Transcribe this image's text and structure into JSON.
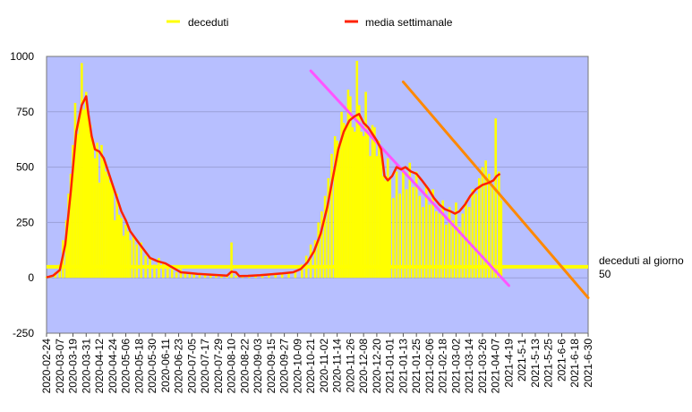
{
  "chart_data": {
    "type": "line",
    "title": "",
    "xlabel": "",
    "ylabel": "",
    "ylim": [
      -250,
      1000
    ],
    "yticks": [
      -250,
      0,
      250,
      500,
      750,
      1000
    ],
    "x_start": "2020-02-24",
    "x_end": "2021-06-30",
    "xtick_labels": [
      "2020-02-24",
      "2020-03-07",
      "2020-03-19",
      "2020-03-31",
      "2020-04-12",
      "2020-04-24",
      "2020-05-06",
      "2020-05-18",
      "2020-05-30",
      "2020-06-11",
      "2020-06-23",
      "2020-07-05",
      "2020-07-17",
      "2020-07-29",
      "2020-08-10",
      "2020-08-22",
      "2020-09-03",
      "2020-09-15",
      "2020-09-27",
      "2020-10-09",
      "2020-10-21",
      "2020-11-02",
      "2020-11-14",
      "2020-11-26",
      "2020-12-08",
      "2020-12-20",
      "2021-01-01",
      "2021-01-13",
      "2021-01-25",
      "2021-02-06",
      "2021-02-18",
      "2021-03-02",
      "2021-03-14",
      "2021-03-26",
      "2021-04-07",
      "2021-4-19",
      "2021-5-1",
      "2021-5-13",
      "2021-5-25",
      "2021-6-6",
      "2021-6-18",
      "2021-6-30"
    ],
    "grid": "horizontal",
    "legend_position": "top",
    "plot_background": "#b7bfff",
    "series": [
      {
        "name": "deceduti",
        "color": "#ffff00",
        "style": "bar",
        "points": [
          [
            "2020-02-24",
            5
          ],
          [
            "2020-02-28",
            8
          ],
          [
            "2020-03-03",
            25
          ],
          [
            "2020-03-07",
            60
          ],
          [
            "2020-03-10",
            170
          ],
          [
            "2020-03-13",
            260
          ],
          [
            "2020-03-15",
            380
          ],
          [
            "2020-03-17",
            470
          ],
          [
            "2020-03-19",
            600
          ],
          [
            "2020-03-21",
            790
          ],
          [
            "2020-03-23",
            650
          ],
          [
            "2020-03-25",
            740
          ],
          [
            "2020-03-27",
            970
          ],
          [
            "2020-03-29",
            760
          ],
          [
            "2020-03-31",
            840
          ],
          [
            "2020-04-02",
            740
          ],
          [
            "2020-04-04",
            690
          ],
          [
            "2020-04-06",
            630
          ],
          [
            "2020-04-08",
            540
          ],
          [
            "2020-04-10",
            610
          ],
          [
            "2020-04-12",
            430
          ],
          [
            "2020-04-14",
            600
          ],
          [
            "2020-04-16",
            530
          ],
          [
            "2020-04-18",
            480
          ],
          [
            "2020-04-20",
            460
          ],
          [
            "2020-04-22",
            430
          ],
          [
            "2020-04-24",
            420
          ],
          [
            "2020-04-26",
            260
          ],
          [
            "2020-04-28",
            380
          ],
          [
            "2020-04-30",
            285
          ],
          [
            "2020-05-02",
            270
          ],
          [
            "2020-05-04",
            190
          ],
          [
            "2020-05-06",
            240
          ],
          [
            "2020-05-08",
            210
          ],
          [
            "2020-05-10",
            170
          ],
          [
            "2020-05-13",
            190
          ],
          [
            "2020-05-16",
            150
          ],
          [
            "2020-05-20",
            160
          ],
          [
            "2020-05-24",
            100
          ],
          [
            "2020-05-28",
            90
          ],
          [
            "2020-06-01",
            60
          ],
          [
            "2020-06-05",
            90
          ],
          [
            "2020-06-09",
            70
          ],
          [
            "2020-06-13",
            60
          ],
          [
            "2020-06-17",
            40
          ],
          [
            "2020-06-21",
            25
          ],
          [
            "2020-06-25",
            40
          ],
          [
            "2020-06-29",
            20
          ],
          [
            "2020-07-03",
            25
          ],
          [
            "2020-07-07",
            20
          ],
          [
            "2020-07-12",
            15
          ],
          [
            "2020-07-17",
            15
          ],
          [
            "2020-07-22",
            15
          ],
          [
            "2020-07-27",
            10
          ],
          [
            "2020-08-01",
            10
          ],
          [
            "2020-08-06",
            8
          ],
          [
            "2020-08-10",
            160
          ],
          [
            "2020-08-14",
            10
          ],
          [
            "2020-08-20",
            8
          ],
          [
            "2020-08-26",
            10
          ],
          [
            "2020-09-01",
            10
          ],
          [
            "2020-09-07",
            12
          ],
          [
            "2020-09-13",
            15
          ],
          [
            "2020-09-19",
            20
          ],
          [
            "2020-09-25",
            20
          ],
          [
            "2020-10-01",
            25
          ],
          [
            "2020-10-07",
            30
          ],
          [
            "2020-10-13",
            60
          ],
          [
            "2020-10-17",
            100
          ],
          [
            "2020-10-21",
            150
          ],
          [
            "2020-10-25",
            170
          ],
          [
            "2020-10-28",
            250
          ],
          [
            "2020-10-31",
            300
          ],
          [
            "2020-11-03",
            370
          ],
          [
            "2020-11-06",
            450
          ],
          [
            "2020-11-09",
            560
          ],
          [
            "2020-11-12",
            640
          ],
          [
            "2020-11-14",
            620
          ],
          [
            "2020-11-16",
            580
          ],
          [
            "2020-11-18",
            750
          ],
          [
            "2020-11-20",
            700
          ],
          [
            "2020-11-22",
            690
          ],
          [
            "2020-11-24",
            850
          ],
          [
            "2020-11-26",
            820
          ],
          [
            "2020-11-28",
            680
          ],
          [
            "2020-11-30",
            660
          ],
          [
            "2020-12-02",
            980
          ],
          [
            "2020-12-04",
            780
          ],
          [
            "2020-12-06",
            660
          ],
          [
            "2020-12-08",
            640
          ],
          [
            "2020-12-10",
            840
          ],
          [
            "2020-12-12",
            650
          ],
          [
            "2020-12-14",
            550
          ],
          [
            "2020-12-16",
            690
          ],
          [
            "2020-12-18",
            680
          ],
          [
            "2020-12-20",
            550
          ],
          [
            "2020-12-22",
            620
          ],
          [
            "2020-12-24",
            550
          ],
          [
            "2020-12-26",
            460
          ],
          [
            "2020-12-28",
            440
          ],
          [
            "2020-12-30",
            540
          ],
          [
            "2021-01-01",
            450
          ],
          [
            "2021-01-04",
            360
          ],
          [
            "2021-01-07",
            480
          ],
          [
            "2021-01-10",
            380
          ],
          [
            "2021-01-13",
            500
          ],
          [
            "2021-01-16",
            400
          ],
          [
            "2021-01-19",
            520
          ],
          [
            "2021-01-22",
            410
          ],
          [
            "2021-01-25",
            480
          ],
          [
            "2021-01-28",
            370
          ],
          [
            "2021-01-31",
            320
          ],
          [
            "2021-02-03",
            420
          ],
          [
            "2021-02-06",
            330
          ],
          [
            "2021-02-09",
            400
          ],
          [
            "2021-02-12",
            300
          ],
          [
            "2021-02-15",
            290
          ],
          [
            "2021-02-18",
            350
          ],
          [
            "2021-02-21",
            240
          ],
          [
            "2021-02-24",
            320
          ],
          [
            "2021-02-27",
            260
          ],
          [
            "2021-03-02",
            340
          ],
          [
            "2021-03-05",
            230
          ],
          [
            "2021-03-08",
            290
          ],
          [
            "2021-03-11",
            350
          ],
          [
            "2021-03-14",
            320
          ],
          [
            "2021-03-17",
            400
          ],
          [
            "2021-03-20",
            380
          ],
          [
            "2021-03-23",
            450
          ],
          [
            "2021-03-26",
            500
          ],
          [
            "2021-03-29",
            530
          ],
          [
            "2021-04-01",
            470
          ],
          [
            "2021-04-04",
            410
          ],
          [
            "2021-04-07",
            720
          ],
          [
            "2021-04-10",
            480
          ],
          [
            "2021-04-12",
            350
          ]
        ]
      },
      {
        "name": "media settimanale",
        "color": "#ff2200",
        "style": "line",
        "points": [
          [
            "2020-02-24",
            2
          ],
          [
            "2020-03-01",
            10
          ],
          [
            "2020-03-07",
            35
          ],
          [
            "2020-03-12",
            150
          ],
          [
            "2020-03-17",
            390
          ],
          [
            "2020-03-22",
            660
          ],
          [
            "2020-03-27",
            780
          ],
          [
            "2020-03-31",
            820
          ],
          [
            "2020-04-02",
            740
          ],
          [
            "2020-04-05",
            640
          ],
          [
            "2020-04-08",
            580
          ],
          [
            "2020-04-12",
            570
          ],
          [
            "2020-04-16",
            540
          ],
          [
            "2020-04-20",
            480
          ],
          [
            "2020-04-24",
            420
          ],
          [
            "2020-04-28",
            360
          ],
          [
            "2020-05-02",
            300
          ],
          [
            "2020-05-06",
            260
          ],
          [
            "2020-05-10",
            210
          ],
          [
            "2020-05-16",
            170
          ],
          [
            "2020-05-22",
            130
          ],
          [
            "2020-05-28",
            90
          ],
          [
            "2020-06-04",
            75
          ],
          [
            "2020-06-11",
            65
          ],
          [
            "2020-06-18",
            45
          ],
          [
            "2020-06-25",
            25
          ],
          [
            "2020-07-02",
            22
          ],
          [
            "2020-07-10",
            18
          ],
          [
            "2020-07-20",
            15
          ],
          [
            "2020-07-30",
            12
          ],
          [
            "2020-08-06",
            10
          ],
          [
            "2020-08-10",
            28
          ],
          [
            "2020-08-14",
            25
          ],
          [
            "2020-08-17",
            8
          ],
          [
            "2020-08-25",
            9
          ],
          [
            "2020-09-05",
            12
          ],
          [
            "2020-09-15",
            16
          ],
          [
            "2020-09-25",
            20
          ],
          [
            "2020-10-05",
            25
          ],
          [
            "2020-10-12",
            40
          ],
          [
            "2020-10-18",
            70
          ],
          [
            "2020-10-24",
            120
          ],
          [
            "2020-10-30",
            200
          ],
          [
            "2020-11-05",
            320
          ],
          [
            "2020-11-10",
            450
          ],
          [
            "2020-11-15",
            580
          ],
          [
            "2020-11-20",
            660
          ],
          [
            "2020-11-25",
            710
          ],
          [
            "2020-11-30",
            730
          ],
          [
            "2020-12-04",
            740
          ],
          [
            "2020-12-08",
            700
          ],
          [
            "2020-12-12",
            680
          ],
          [
            "2020-12-16",
            650
          ],
          [
            "2020-12-20",
            620
          ],
          [
            "2020-12-24",
            580
          ],
          [
            "2020-12-27",
            460
          ],
          [
            "2020-12-30",
            440
          ],
          [
            "2021-01-03",
            460
          ],
          [
            "2021-01-07",
            500
          ],
          [
            "2021-01-11",
            490
          ],
          [
            "2021-01-15",
            500
          ],
          [
            "2021-01-20",
            480
          ],
          [
            "2021-01-25",
            470
          ],
          [
            "2021-01-30",
            440
          ],
          [
            "2021-02-05",
            400
          ],
          [
            "2021-02-10",
            360
          ],
          [
            "2021-02-15",
            330
          ],
          [
            "2021-02-20",
            310
          ],
          [
            "2021-02-25",
            300
          ],
          [
            "2021-03-01",
            290
          ],
          [
            "2021-03-05",
            300
          ],
          [
            "2021-03-10",
            330
          ],
          [
            "2021-03-15",
            370
          ],
          [
            "2021-03-20",
            400
          ],
          [
            "2021-03-26",
            420
          ],
          [
            "2021-04-01",
            430
          ],
          [
            "2021-04-05",
            440
          ],
          [
            "2021-04-08",
            460
          ],
          [
            "2021-04-11",
            470
          ]
        ]
      }
    ],
    "trend_lines": [
      {
        "color": "#ff55ff",
        "from": [
          "2020-10-21",
          935
        ],
        "to": [
          "2021-04-19",
          -35
        ]
      },
      {
        "color": "#ff8800",
        "from": [
          "2021-01-13",
          885
        ],
        "to": [
          "2021-06-30",
          -90
        ]
      }
    ],
    "reference_line": {
      "y": 50,
      "color": "#ffff00",
      "label": "deceduti al giorno",
      "value_label": "50"
    }
  }
}
